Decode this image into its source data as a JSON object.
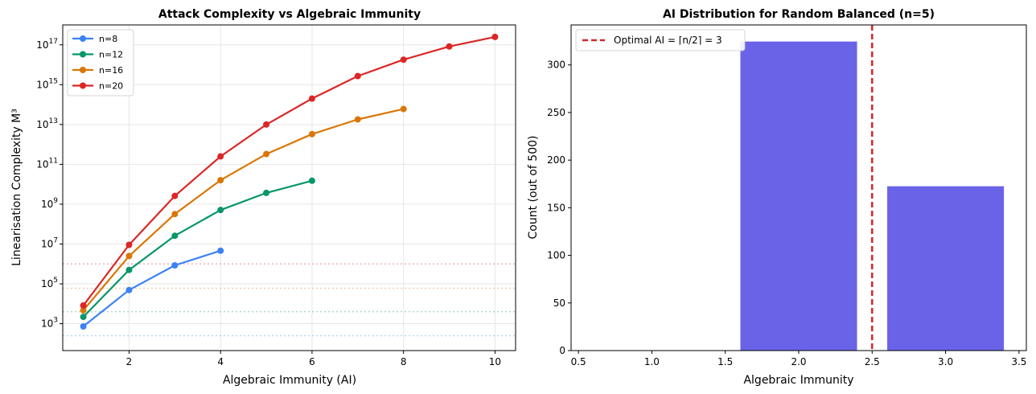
{
  "chart_data": [
    {
      "type": "line",
      "title": "Attack Complexity vs Algebraic Immunity",
      "xlabel": "Algebraic Immunity (AI)",
      "ylabel": "Linearisation Complexity M³",
      "xlim": [
        0.55,
        10.45
      ],
      "ylim_log10": [
        1.65,
        18.0
      ],
      "yscale": "log",
      "x_ticks": [
        2,
        4,
        6,
        8,
        10
      ],
      "y_tick_exponents": [
        3,
        5,
        7,
        9,
        11,
        13,
        15,
        17
      ],
      "y_tick_base": "10",
      "grid": true,
      "legend_position": "top-left",
      "series": [
        {
          "name": "n=8",
          "color": "#3b82f6",
          "x": [
            1,
            2,
            3,
            4
          ],
          "y": [
            730,
            49000,
            850000,
            4600000
          ],
          "threshold": 250
        },
        {
          "name": "n=12",
          "color": "#059669",
          "x": [
            1,
            2,
            3,
            4,
            5,
            6
          ],
          "y": [
            2200,
            500000,
            26000000,
            510000000,
            3700000000,
            15000000000
          ],
          "threshold": 4000
        },
        {
          "name": "n=16",
          "color": "#d97706",
          "x": [
            1,
            2,
            3,
            4,
            5,
            6,
            7,
            8
          ],
          "y": [
            4700,
            2500000,
            320000000,
            16000000000,
            330000000000,
            3300000000000,
            18000000000000,
            60000000000000
          ],
          "threshold": 60000
        },
        {
          "name": "n=20",
          "color": "#dc2626",
          "x": [
            1,
            2,
            3,
            4,
            5,
            6,
            7,
            8,
            9,
            10
          ],
          "y": [
            8200,
            9100000,
            2600000000,
            250000000000,
            10000000000000,
            200000000000000,
            2700000000000000,
            18000000000000000,
            83000000000000000,
            250000000000000000
          ],
          "threshold": 1000000
        }
      ]
    },
    {
      "type": "bar",
      "title": "AI Distribution for Random Balanced (n=5)",
      "xlabel": "Algebraic Immunity",
      "ylabel": "Count (out of 500)",
      "xlim": [
        0.45,
        3.55
      ],
      "ylim": [
        0,
        342
      ],
      "x_ticks": [
        "0.5",
        "1.0",
        "1.5",
        "2.0",
        "2.5",
        "3.0",
        "3.5"
      ],
      "y_ticks": [
        0,
        50,
        100,
        150,
        200,
        250,
        300
      ],
      "bar_color": "#6a63e8",
      "bars": [
        {
          "x": 2,
          "value": 325
        },
        {
          "x": 3,
          "value": 173
        }
      ],
      "bar_width": 0.8,
      "reference_line": {
        "x": 2.5,
        "label": "Optimal AI = ⌈n/2⌉ = 3",
        "color": "#d62728"
      },
      "grid": false,
      "legend_position": "top-left"
    }
  ]
}
